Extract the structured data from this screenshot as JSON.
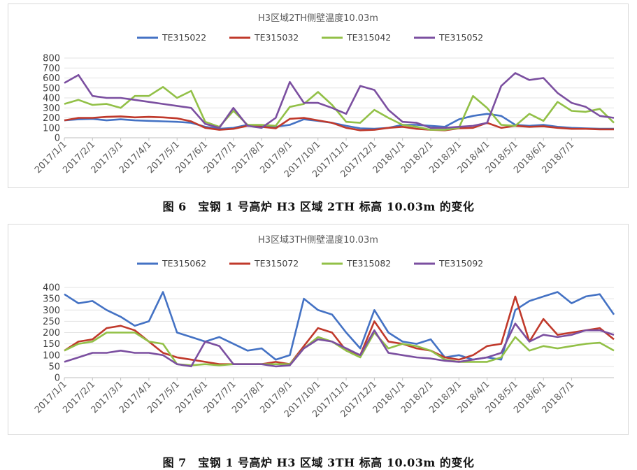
{
  "captions": {
    "fig6": "图 6　宝钢 1 号高炉 H3 区域 2TH 标高 10.03m 的变化",
    "fig7": "图 7　宝钢 1 号高炉 H3 区域 3TH 标高 10.03m 的变化"
  },
  "chart_data": [
    {
      "type": "line",
      "title": "H3区域2TH侧壁温度10.03m",
      "xlabel": "",
      "ylabel": "",
      "ylim": [
        0,
        800
      ],
      "yticks": [
        0,
        100,
        200,
        300,
        400,
        500,
        600,
        700,
        800
      ],
      "grid": true,
      "legend": "top",
      "x_tick_labels": [
        "2017/1/1",
        "2017/2/1",
        "2017/3/1",
        "2017/4/1",
        "2017/5/1",
        "2017/6/1",
        "2017/7/1",
        "2017/8/1",
        "2017/9/1",
        "2017/10/1",
        "2017/11/1",
        "2017/12/1",
        "2018/1/1",
        "2018/2/1",
        "2018/3/1",
        "2018/4/1",
        "2018/5/1",
        "2018/6/1",
        "2018/7/1"
      ],
      "x_points_month": [
        0,
        0.5,
        1,
        1.5,
        2,
        2.5,
        3,
        3.5,
        4,
        4.5,
        5,
        5.5,
        6,
        6.5,
        7,
        7.5,
        8,
        8.5,
        9,
        9.5,
        10,
        10.5,
        11,
        11.5,
        12,
        12.5,
        13,
        13.5,
        14,
        14.5,
        15,
        15.5,
        16,
        16.5,
        17,
        17.5,
        18,
        18.5,
        19,
        19.5
      ],
      "series": [
        {
          "name": "TE315022",
          "color": "#4472c4",
          "values": [
            175,
            185,
            190,
            175,
            185,
            175,
            170,
            165,
            160,
            150,
            110,
            90,
            100,
            130,
            120,
            110,
            130,
            185,
            170,
            150,
            120,
            95,
            90,
            100,
            130,
            130,
            120,
            110,
            185,
            220,
            240,
            220,
            130,
            120,
            130,
            110,
            100,
            95,
            90,
            90
          ]
        },
        {
          "name": "TE315032",
          "color": "#c0392b",
          "values": [
            175,
            200,
            200,
            210,
            215,
            205,
            210,
            205,
            195,
            165,
            100,
            80,
            90,
            120,
            110,
            95,
            190,
            200,
            175,
            150,
            100,
            75,
            80,
            100,
            110,
            90,
            80,
            75,
            95,
            100,
            150,
            100,
            120,
            110,
            115,
            100,
            90,
            90,
            85,
            85
          ]
        },
        {
          "name": "TE315042",
          "color": "#92c047",
          "values": [
            340,
            380,
            330,
            340,
            300,
            420,
            420,
            510,
            400,
            470,
            160,
            110,
            270,
            130,
            130,
            120,
            310,
            340,
            460,
            330,
            160,
            150,
            280,
            200,
            130,
            110,
            80,
            80,
            100,
            420,
            300,
            130,
            120,
            240,
            170,
            360,
            270,
            260,
            290,
            150
          ]
        },
        {
          "name": "TE315052",
          "color": "#7b4fa0",
          "values": [
            550,
            630,
            420,
            400,
            400,
            380,
            360,
            340,
            320,
            300,
            140,
            100,
            300,
            120,
            100,
            200,
            560,
            350,
            350,
            300,
            240,
            520,
            480,
            280,
            160,
            150,
            100,
            100,
            110,
            120,
            150,
            520,
            650,
            580,
            600,
            450,
            350,
            310,
            220,
            200
          ]
        }
      ]
    },
    {
      "type": "line",
      "title": "H3区域3TH侧壁温度10.03m",
      "xlabel": "",
      "ylabel": "",
      "ylim": [
        0,
        400
      ],
      "yticks": [
        0,
        50,
        100,
        150,
        200,
        250,
        300,
        350,
        400
      ],
      "grid": true,
      "legend": "top",
      "x_tick_labels": [
        "2017/1/1",
        "2017/2/1",
        "2017/3/1",
        "2017/4/1",
        "2017/5/1",
        "2017/6/1",
        "2017/7/1",
        "2017/8/1",
        "2017/9/1",
        "2017/10/1",
        "2017/11/1",
        "2017/12/1",
        "2018/1/1",
        "2018/2/1",
        "2018/3/1",
        "2018/4/1",
        "2018/5/1",
        "2018/6/1",
        "2018/7/1"
      ],
      "x_points_month": [
        0,
        0.5,
        1,
        1.5,
        2,
        2.5,
        3,
        3.5,
        4,
        4.5,
        5,
        5.5,
        6,
        6.5,
        7,
        7.5,
        8,
        8.5,
        9,
        9.5,
        10,
        10.5,
        11,
        11.5,
        12,
        12.5,
        13,
        13.5,
        14,
        14.5,
        15,
        15.5,
        16,
        16.5,
        17,
        17.5,
        18,
        18.5,
        19,
        19.5
      ],
      "series": [
        {
          "name": "TE315062",
          "color": "#4472c4",
          "values": [
            370,
            330,
            340,
            300,
            270,
            230,
            250,
            380,
            200,
            180,
            160,
            180,
            150,
            120,
            130,
            80,
            100,
            350,
            300,
            280,
            200,
            130,
            300,
            200,
            160,
            150,
            170,
            90,
            100,
            80,
            90,
            80,
            300,
            340,
            360,
            380,
            330,
            360,
            370,
            280
          ]
        },
        {
          "name": "TE315072",
          "color": "#c0392b",
          "values": [
            120,
            160,
            170,
            220,
            230,
            210,
            160,
            110,
            90,
            80,
            70,
            60,
            60,
            60,
            60,
            70,
            60,
            140,
            220,
            200,
            120,
            100,
            250,
            160,
            150,
            130,
            120,
            90,
            80,
            100,
            140,
            150,
            360,
            160,
            260,
            190,
            200,
            210,
            220,
            170
          ]
        },
        {
          "name": "TE315082",
          "color": "#92c047",
          "values": [
            120,
            150,
            160,
            200,
            200,
            200,
            160,
            150,
            60,
            55,
            60,
            55,
            60,
            60,
            60,
            60,
            60,
            130,
            180,
            160,
            120,
            90,
            200,
            130,
            150,
            140,
            120,
            80,
            70,
            70,
            70,
            90,
            180,
            120,
            140,
            130,
            140,
            150,
            155,
            120
          ]
        },
        {
          "name": "TE315092",
          "color": "#7b4fa0",
          "values": [
            70,
            90,
            110,
            110,
            120,
            110,
            110,
            100,
            60,
            50,
            160,
            140,
            60,
            60,
            60,
            50,
            55,
            130,
            170,
            160,
            130,
            100,
            210,
            110,
            100,
            90,
            85,
            75,
            70,
            80,
            90,
            110,
            240,
            160,
            190,
            180,
            190,
            210,
            210,
            190
          ]
        }
      ]
    }
  ]
}
